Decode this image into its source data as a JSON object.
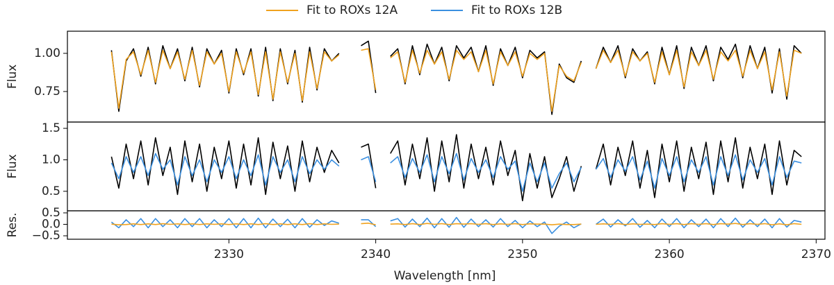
{
  "chart_data": {
    "type": "line",
    "xlabel": "Wavelength [nm]",
    "xlim": [
      2319.0,
      2370.6
    ],
    "xticks": [
      2330,
      2340,
      2350,
      2360,
      2370
    ],
    "x": [
      2321.5,
      2322.0,
      2322.5,
      2323.0,
      2323.5,
      2324.0,
      2324.5,
      2325.0,
      2325.5,
      2326.0,
      2326.5,
      2327.0,
      2327.5,
      2328.0,
      2328.5,
      2329.0,
      2329.5,
      2330.0,
      2330.5,
      2331.0,
      2331.5,
      2332.0,
      2332.5,
      2333.0,
      2333.5,
      2334.0,
      2334.5,
      2335.0,
      2335.5,
      2336.0,
      2336.5,
      2337.0,
      2337.5,
      2338.0,
      2338.5,
      2339.0,
      2339.5,
      2340.0,
      2340.5,
      2341.0,
      2341.5,
      2342.0,
      2342.5,
      2343.0,
      2343.5,
      2344.0,
      2344.5,
      2345.0,
      2345.5,
      2346.0,
      2346.5,
      2347.0,
      2347.5,
      2348.0,
      2348.5,
      2349.0,
      2349.5,
      2350.0,
      2350.5,
      2351.0,
      2351.5,
      2352.0,
      2352.5,
      2353.0,
      2353.5,
      2354.0,
      2354.5,
      2355.0,
      2355.5,
      2356.0,
      2356.5,
      2357.0,
      2357.5,
      2358.0,
      2358.5,
      2359.0,
      2359.5,
      2360.0,
      2360.5,
      2361.0,
      2361.5,
      2362.0,
      2362.5,
      2363.0,
      2363.5,
      2364.0,
      2364.5,
      2365.0,
      2365.5,
      2366.0,
      2366.5,
      2367.0,
      2367.5,
      2368.0,
      2368.5,
      2369.0,
      2369.5
    ],
    "panels": [
      {
        "ylabel": "Flux",
        "ylim": [
          0.55,
          1.145
        ],
        "yticks": [
          {
            "value": 0.75,
            "label": "0.75"
          },
          {
            "value": 1.0,
            "label": "1.00"
          }
        ],
        "series": [
          {
            "color": "#000000",
            "values": [
              null,
              1.02,
              0.62,
              0.95,
              1.03,
              0.85,
              1.04,
              0.8,
              1.05,
              0.9,
              1.03,
              0.82,
              1.04,
              0.78,
              1.03,
              0.93,
              1.02,
              0.74,
              1.03,
              0.86,
              1.03,
              0.72,
              1.04,
              0.69,
              1.03,
              0.8,
              1.02,
              0.68,
              1.04,
              0.76,
              1.03,
              0.95,
              1.0,
              null,
              null,
              1.05,
              1.08,
              0.74,
              null,
              0.98,
              1.03,
              0.8,
              1.05,
              0.86,
              1.06,
              0.93,
              1.04,
              0.82,
              1.05,
              0.97,
              1.04,
              0.88,
              1.05,
              0.79,
              1.03,
              0.92,
              1.04,
              0.84,
              1.02,
              0.97,
              1.01,
              0.6,
              0.93,
              0.84,
              0.81,
              0.95,
              null,
              0.9,
              1.04,
              0.94,
              1.05,
              0.84,
              1.03,
              0.95,
              1.01,
              0.8,
              1.04,
              0.86,
              1.05,
              0.77,
              1.04,
              0.92,
              1.05,
              0.82,
              1.04,
              0.96,
              1.06,
              0.84,
              1.05,
              0.9,
              1.04,
              0.74,
              1.03,
              0.7,
              1.05,
              1.0,
              null
            ]
          },
          {
            "name": "Fit to ROXs 12A",
            "color": "#f0a21e",
            "values": [
              null,
              1.01,
              0.64,
              0.96,
              1.01,
              0.86,
              1.02,
              0.81,
              1.02,
              0.9,
              1.01,
              0.83,
              1.02,
              0.79,
              1.01,
              0.93,
              1.0,
              0.75,
              1.01,
              0.87,
              1.01,
              0.73,
              1.01,
              0.7,
              1.01,
              0.81,
              1.0,
              0.69,
              1.01,
              0.77,
              1.01,
              0.95,
              0.99,
              null,
              null,
              1.02,
              1.03,
              0.76,
              null,
              0.97,
              1.01,
              0.81,
              1.02,
              0.87,
              1.02,
              0.93,
              1.01,
              0.83,
              1.02,
              0.96,
              1.01,
              0.88,
              1.02,
              0.8,
              1.01,
              0.92,
              1.01,
              0.85,
              1.0,
              0.96,
              1.0,
              0.62,
              0.92,
              0.85,
              0.82,
              0.94,
              null,
              0.9,
              1.02,
              0.94,
              1.02,
              0.85,
              1.01,
              0.95,
              1.0,
              0.81,
              1.01,
              0.86,
              1.02,
              0.78,
              1.01,
              0.92,
              1.02,
              0.83,
              1.01,
              0.95,
              1.02,
              0.85,
              1.02,
              0.9,
              1.01,
              0.76,
              1.01,
              0.72,
              1.02,
              1.0,
              null
            ]
          }
        ]
      },
      {
        "ylabel": "Flux",
        "ylim": [
          0.19,
          1.6
        ],
        "yticks": [
          0.5,
          {
            "value": 1.0,
            "label": "1.0"
          },
          1.5
        ],
        "series": [
          {
            "color": "#000000",
            "values": [
              null,
              1.05,
              0.55,
              1.25,
              0.7,
              1.3,
              0.6,
              1.35,
              0.75,
              1.2,
              0.45,
              1.3,
              0.65,
              1.25,
              0.5,
              1.2,
              0.7,
              1.3,
              0.55,
              1.25,
              0.6,
              1.35,
              0.45,
              1.28,
              0.7,
              1.22,
              0.5,
              1.3,
              0.65,
              1.2,
              0.8,
              1.15,
              0.95,
              null,
              null,
              1.2,
              1.25,
              0.55,
              null,
              1.1,
              1.3,
              0.6,
              1.25,
              0.7,
              1.35,
              0.5,
              1.3,
              0.65,
              1.4,
              0.55,
              1.25,
              0.7,
              1.2,
              0.6,
              1.3,
              0.75,
              1.15,
              0.35,
              1.1,
              0.55,
              1.05,
              0.4,
              0.7,
              1.05,
              0.5,
              0.9,
              null,
              0.85,
              1.25,
              0.6,
              1.2,
              0.75,
              1.3,
              0.55,
              1.15,
              0.4,
              1.25,
              0.65,
              1.3,
              0.5,
              1.2,
              0.7,
              1.28,
              0.45,
              1.3,
              0.65,
              1.35,
              0.55,
              1.2,
              0.7,
              1.25,
              0.45,
              1.3,
              0.6,
              1.15,
              1.05,
              null
            ]
          },
          {
            "name": "Fit to ROXs 12B",
            "color": "#3a8fe0",
            "values": [
              null,
              0.95,
              0.7,
              1.05,
              0.8,
              1.05,
              0.75,
              1.1,
              0.85,
              1.0,
              0.6,
              1.05,
              0.75,
              1.0,
              0.65,
              1.0,
              0.8,
              1.05,
              0.7,
              1.0,
              0.75,
              1.08,
              0.6,
              1.05,
              0.8,
              1.0,
              0.65,
              1.05,
              0.78,
              1.0,
              0.85,
              1.0,
              0.9,
              null,
              null,
              1.0,
              1.05,
              0.65,
              null,
              0.95,
              1.05,
              0.72,
              1.02,
              0.8,
              1.08,
              0.65,
              1.05,
              0.78,
              1.1,
              0.68,
              1.02,
              0.8,
              1.0,
              0.72,
              1.05,
              0.85,
              0.98,
              0.5,
              0.95,
              0.65,
              0.95,
              0.55,
              0.78,
              0.95,
              0.65,
              0.88,
              null,
              0.85,
              1.02,
              0.72,
              1.0,
              0.82,
              1.05,
              0.68,
              0.98,
              0.55,
              1.02,
              0.75,
              1.05,
              0.65,
              1.0,
              0.8,
              1.05,
              0.6,
              1.05,
              0.75,
              1.08,
              0.68,
              1.0,
              0.8,
              1.02,
              0.6,
              1.05,
              0.72,
              0.98,
              0.95,
              null
            ]
          }
        ]
      },
      {
        "ylabel": "Res.",
        "ylim": [
          -0.65,
          0.59
        ],
        "yticks": [
          {
            "value": -0.5,
            "label": "−0.5"
          },
          {
            "value": 0.0,
            "label": "0.0"
          },
          0.5
        ],
        "series": [
          {
            "color": "#3a8fe0",
            "values": [
              null,
              0.1,
              -0.15,
              0.2,
              -0.1,
              0.25,
              -0.15,
              0.25,
              -0.1,
              0.2,
              -0.15,
              0.25,
              -0.1,
              0.25,
              -0.15,
              0.2,
              -0.1,
              0.25,
              -0.15,
              0.25,
              -0.15,
              0.27,
              -0.15,
              0.23,
              -0.1,
              0.22,
              -0.15,
              0.25,
              -0.13,
              0.2,
              -0.05,
              0.15,
              0.05,
              null,
              null,
              0.2,
              0.2,
              -0.1,
              null,
              0.15,
              0.25,
              -0.12,
              0.23,
              -0.1,
              0.27,
              -0.15,
              0.25,
              -0.13,
              0.3,
              -0.13,
              0.23,
              -0.1,
              0.2,
              -0.12,
              0.25,
              -0.1,
              0.17,
              -0.15,
              0.15,
              -0.1,
              0.1,
              -0.4,
              -0.08,
              0.1,
              -0.15,
              0.02,
              null,
              0.0,
              0.23,
              -0.12,
              0.2,
              -0.07,
              0.25,
              -0.13,
              0.17,
              -0.15,
              0.23,
              -0.1,
              0.25,
              -0.15,
              0.2,
              -0.1,
              0.23,
              -0.15,
              0.25,
              -0.1,
              0.27,
              -0.13,
              0.2,
              -0.1,
              0.23,
              -0.15,
              0.25,
              -0.12,
              0.17,
              0.1,
              null
            ]
          },
          {
            "color": "#f0a21e",
            "values": [
              null,
              0.01,
              -0.02,
              -0.01,
              0.02,
              -0.01,
              0.02,
              -0.01,
              0.03,
              0.0,
              0.02,
              -0.01,
              0.02,
              -0.01,
              0.02,
              0.0,
              0.02,
              -0.01,
              0.02,
              -0.01,
              0.02,
              -0.01,
              0.03,
              -0.01,
              0.02,
              -0.01,
              0.02,
              -0.01,
              0.03,
              -0.01,
              0.02,
              0.0,
              0.01,
              null,
              null,
              0.03,
              0.05,
              -0.02,
              null,
              0.01,
              0.02,
              -0.01,
              0.03,
              -0.01,
              0.04,
              0.0,
              0.03,
              -0.01,
              0.03,
              0.01,
              0.03,
              0.0,
              0.03,
              -0.01,
              0.02,
              0.0,
              0.03,
              -0.01,
              0.02,
              0.01,
              0.01,
              -0.02,
              0.01,
              -0.01,
              -0.01,
              0.01,
              null,
              0.0,
              0.02,
              0.0,
              0.03,
              -0.01,
              0.02,
              0.0,
              0.01,
              -0.01,
              0.03,
              0.0,
              0.03,
              -0.01,
              0.03,
              0.0,
              0.03,
              -0.01,
              0.03,
              0.01,
              0.04,
              -0.01,
              0.03,
              0.0,
              0.03,
              -0.02,
              0.02,
              -0.02,
              0.03,
              0.0,
              null
            ]
          }
        ]
      }
    ]
  }
}
